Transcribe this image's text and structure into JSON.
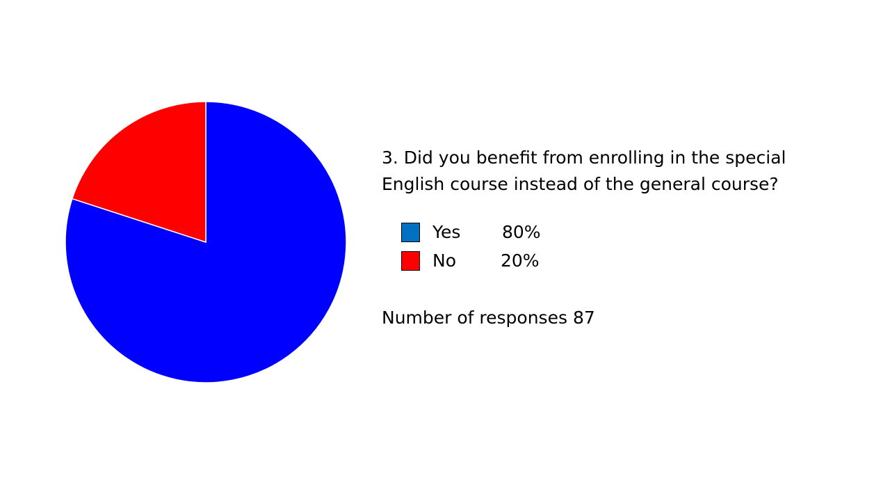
{
  "chart_data": {
    "type": "pie",
    "title": "3. Did you benefit from enrolling in the special English course instead of the general course?",
    "categories": [
      "Yes",
      "No"
    ],
    "values": [
      80,
      20
    ],
    "value_labels": [
      "80%",
      "20%"
    ],
    "colors": [
      "#0000ff",
      "#ff0000"
    ],
    "legend_colors": [
      "#0070c0",
      "#ff0000"
    ],
    "responses_label": "Number of responses",
    "responses": 87
  }
}
